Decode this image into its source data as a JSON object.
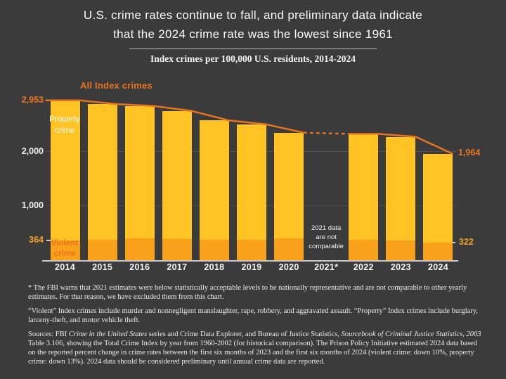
{
  "page": {
    "background": "#3b3b3b"
  },
  "title": {
    "lines": [
      "U.S. crime rates continue to fall, and preliminary data indicate",
      "that the 2024 crime rate was the lowest since 1961"
    ]
  },
  "subtitle": "Index crimes per 100,000 U.S. residents, 2014-2024",
  "colors": {
    "background": "#3b3b3b",
    "bar_property_yellow": "#ffc423",
    "bar_violent_orange": "#f9a11b",
    "trend_line_orange": "#e87420",
    "label_orange": "#e87420",
    "label_amber": "#f0a125",
    "text_white": "#f3f3f3",
    "axis_gray": "#c9c9c9"
  },
  "chart_data": {
    "type": "bar",
    "stacked": true,
    "title": "Index crimes per 100,000 U.S. residents, 2014-2024",
    "categories": [
      "2014",
      "2015",
      "2016",
      "2017",
      "2018",
      "2019",
      "2020",
      "2021*",
      "2022",
      "2023",
      "2024"
    ],
    "series": [
      {
        "name": "Violent crime",
        "color": "#f9a11b",
        "values": [
          364,
          373,
          398,
          395,
          383,
          379,
          399,
          null,
          381,
          364,
          322
        ]
      },
      {
        "name": "Property crime",
        "color": "#ffc423",
        "values": [
          2589,
          2512,
          2452,
          2363,
          2200,
          2131,
          1958,
          null,
          1954,
          1917,
          1642
        ]
      },
      {
        "name": "All Index crimes",
        "color": "#e87420",
        "values": [
          2953,
          2885,
          2850,
          2758,
          2583,
          2510,
          2357,
          null,
          2335,
          2281,
          1964
        ]
      }
    ],
    "ylim": [
      0,
      3120
    ],
    "yticks": [
      {
        "value": 2000,
        "label": "2,000"
      },
      {
        "value": 1000,
        "label": "1,000"
      }
    ],
    "excluded_year": "2021",
    "line_dashed_between": [
      "2020",
      "2022"
    ],
    "grid": "horizontal-faint",
    "annotations": {
      "first_total": {
        "value": 2953,
        "label": "2,953"
      },
      "first_violent": {
        "value": 364,
        "label": "364"
      },
      "last_total": {
        "value": 1964,
        "label": "1,964"
      },
      "last_violent": {
        "value": 322,
        "label": "322"
      },
      "series_label_total": "All Index crimes",
      "series_label_property": "Property\ncrime",
      "series_label_violent": "Violent\ncrime",
      "gap_note": "2021 data\nare not\ncomparable"
    }
  },
  "footnotes": {
    "fbi_warning": "* The FBI warns that 2021 estimates were below statistically acceptable levels to be nationally representative and are not comparable to other yearly estimates. For that reason, we have excluded them from this chart.",
    "definitions": "“Violent” Index crimes include murder and nonnegligent manslaughter, rape, robbery, and aggravated assault. “Property” Index crimes include burglary, larceny-theft, and motor vehicle theft."
  },
  "sources": {
    "segments": [
      {
        "text": "Sources: FBI ",
        "italic": false
      },
      {
        "text": "Crime in the United States",
        "italic": true
      },
      {
        "text": " series and Crime Data Explorer, and Bureau of Justice Statistics, ",
        "italic": false
      },
      {
        "text": "Sourcebook of Criminal Justice Statistics, 2003",
        "italic": true
      },
      {
        "text": " Table 3.106, showing the Total Crime Index by year from 1960-2002 (for historical comparison). The Prison Policy Initiative estimated 2024 data based on the reported percent change in crime rates between the first six months of 2023 and the first six months of 2024 (violent crime: down 10%, property crime: down 13%). 2024 data should be considered preliminary until annual crime data are reported.",
        "italic": false
      }
    ]
  }
}
